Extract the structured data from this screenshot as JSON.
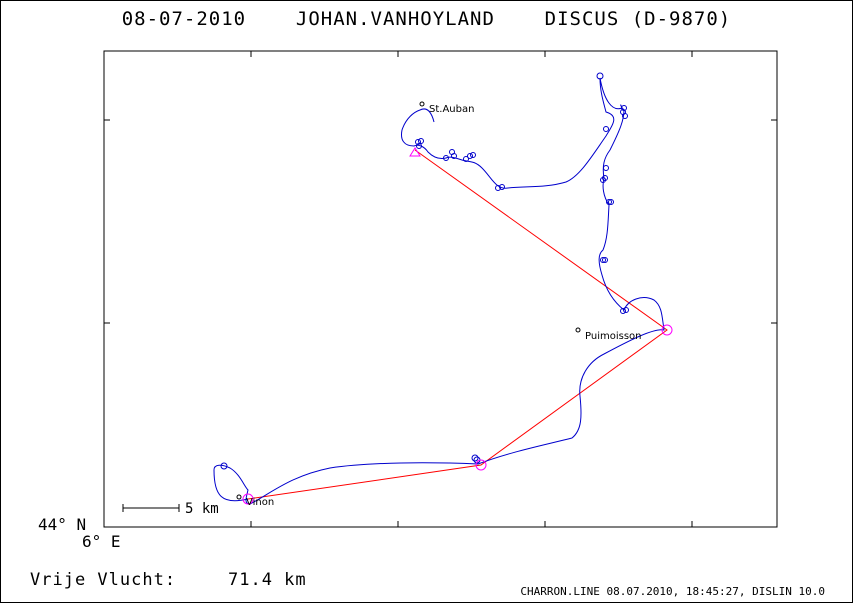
{
  "header": {
    "title": "08-07-2010    JOHAN.VANHOYLAND    DISCUS (D-9870)"
  },
  "map": {
    "origin_lat_label": "44° N",
    "origin_lon_label": "6° E",
    "places": [
      {
        "name": "St.Auban"
      },
      {
        "name": "Puimoisson"
      },
      {
        "name": "Vinon"
      }
    ],
    "scale_label": "5 km",
    "colors": {
      "track": "#0000cc",
      "task": "#ff0000",
      "turnpoint": "#ff00ff"
    },
    "turnpoint_symbols": [
      "triangle-start",
      "circle-turnpoint",
      "circle-turnpoint",
      "circle-finish"
    ]
  },
  "summary": {
    "distance_label": "Vrije Vlucht:",
    "distance_value": "71.4 km"
  },
  "footer": {
    "text": "CHARRON.LINE 08.07.2010, 18:45:27, DISLIN 10.0"
  }
}
